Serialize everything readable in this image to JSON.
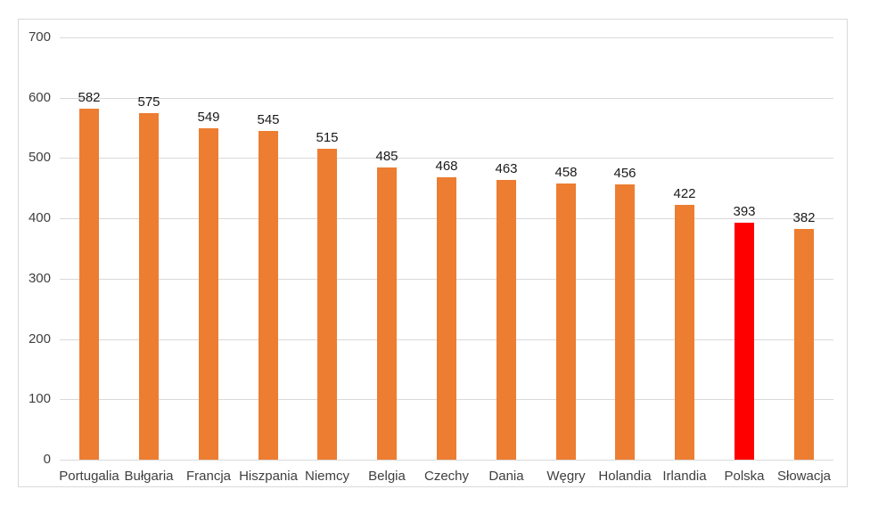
{
  "chart_data": {
    "type": "bar",
    "title": "",
    "categories": [
      "Portugalia",
      "Bułgaria",
      "Francja",
      "Hiszpania",
      "Niemcy",
      "Belgia",
      "Czechy",
      "Dania",
      "Węgry",
      "Holandia",
      "Irlandia",
      "Polska",
      "Słowacja"
    ],
    "values": [
      582,
      575,
      549,
      545,
      515,
      485,
      468,
      463,
      458,
      456,
      422,
      393,
      382
    ],
    "bar_colors": [
      "#ED7D31",
      "#ED7D31",
      "#ED7D31",
      "#ED7D31",
      "#ED7D31",
      "#ED7D31",
      "#ED7D31",
      "#ED7D31",
      "#ED7D31",
      "#ED7D31",
      "#ED7D31",
      "#FF0000",
      "#ED7D31"
    ],
    "highlighted_category": "Polska",
    "xlabel": "",
    "ylabel": "",
    "ylim": [
      0,
      700
    ],
    "ytick_step": 100,
    "yticks": [
      "0",
      "100",
      "200",
      "300",
      "400",
      "500",
      "600",
      "700"
    ],
    "grid": true,
    "data_labels": true,
    "legend_position": "none",
    "colors": {
      "default_bar": "#ED7D31",
      "highlight_bar": "#FF0000",
      "gridline": "#D9D9D9",
      "axis_line": "#D9D9D9",
      "axis_text": "#404040",
      "data_label_text": "#1a1a1a",
      "background": "#ffffff",
      "frame_border": "#D9D9D9"
    }
  }
}
